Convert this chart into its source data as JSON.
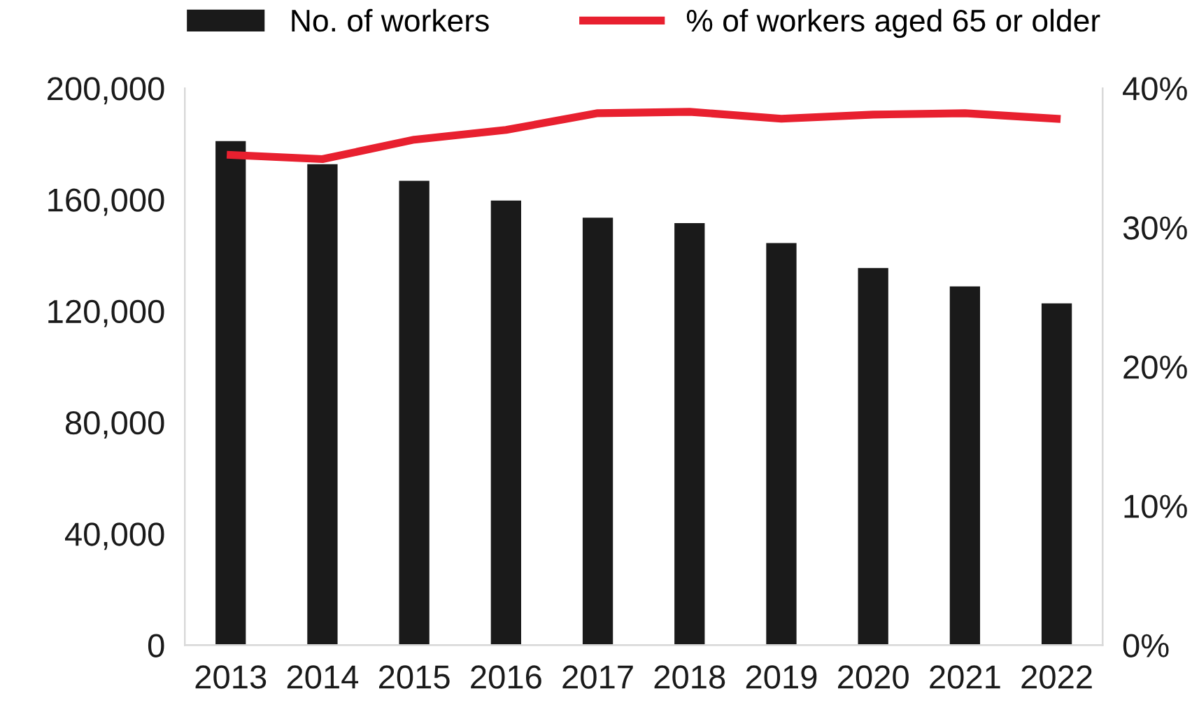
{
  "chart_data": {
    "type": "bar",
    "categories": [
      "2013",
      "2014",
      "2015",
      "2016",
      "2017",
      "2018",
      "2019",
      "2020",
      "2021",
      "2022"
    ],
    "series": [
      {
        "name": "No. of workers",
        "color": "#1a1a1a",
        "values": [
          181000,
          172700,
          166700,
          159600,
          153500,
          151500,
          144400,
          135400,
          128800,
          122700
        ]
      },
      {
        "name": "% of workers aged 65 or older",
        "type": "line",
        "axis": "y2",
        "color": "#e8202f",
        "values": [
          35.2,
          34.9,
          36.3,
          37.0,
          38.2,
          38.3,
          37.8,
          38.1,
          38.2,
          37.8
        ]
      }
    ],
    "ylim": [
      0,
      200000
    ],
    "yticks": [
      {
        "value": 0,
        "label": "0"
      },
      {
        "value": 40000,
        "label": "40,000"
      },
      {
        "value": 80000,
        "label": "80,000"
      },
      {
        "value": 120000,
        "label": "120,000"
      },
      {
        "value": 160000,
        "label": "160,000"
      },
      {
        "value": 200000,
        "label": "200,000"
      }
    ],
    "y2lim": [
      0,
      40
    ],
    "y2ticks": [
      {
        "value": 0,
        "label": "0%"
      },
      {
        "value": 10,
        "label": "10%"
      },
      {
        "value": 20,
        "label": "20%"
      },
      {
        "value": 30,
        "label": "30%"
      },
      {
        "value": 40,
        "label": "40%"
      }
    ],
    "grid": false,
    "legend": "top",
    "marker": "none",
    "line_style": "solid"
  }
}
